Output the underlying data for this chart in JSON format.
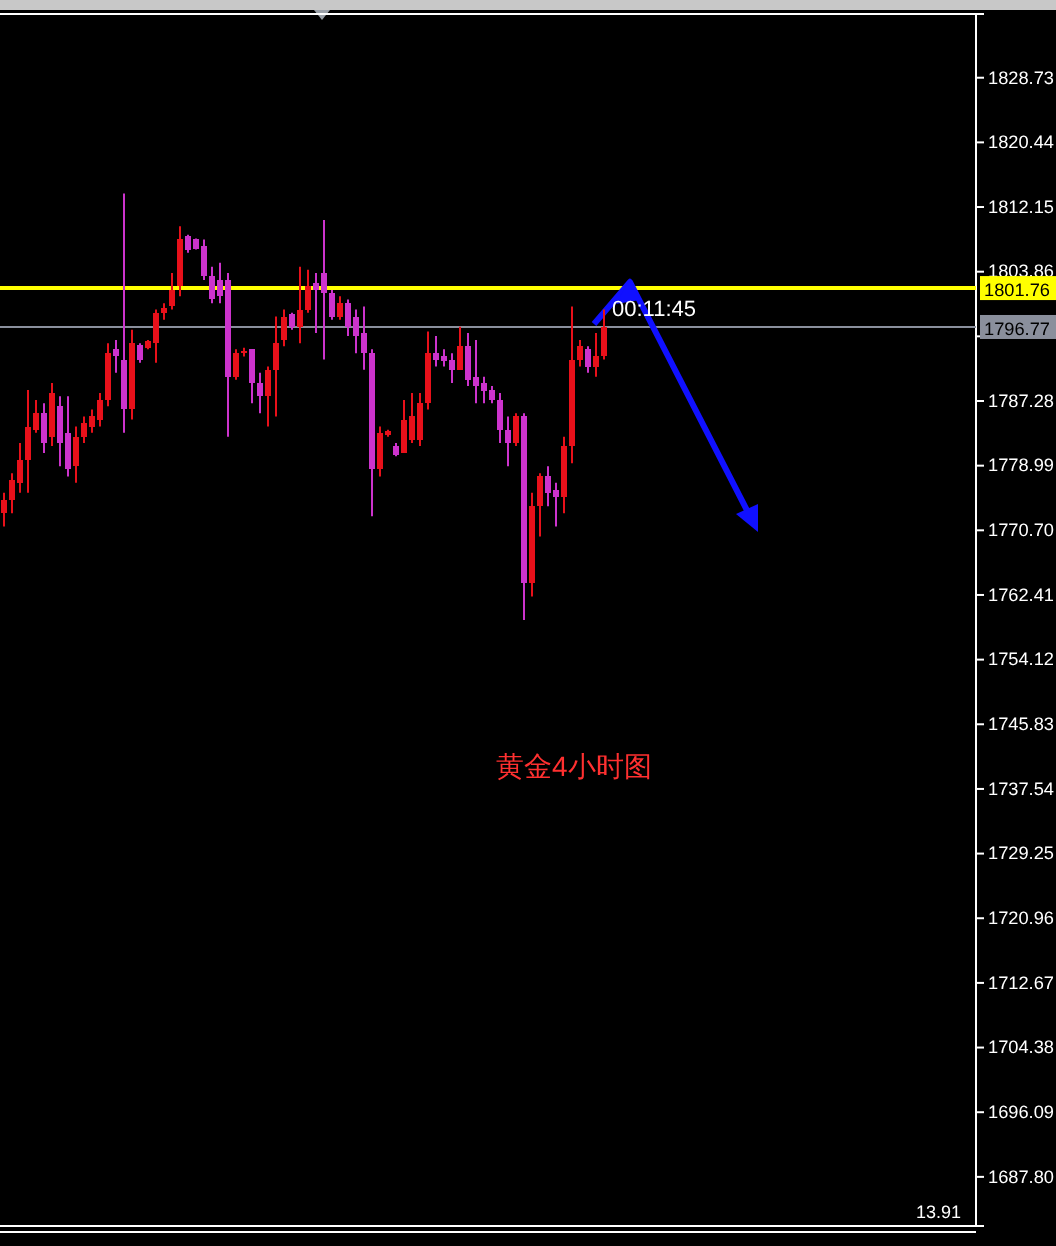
{
  "chart_data": {
    "type": "candlestick",
    "categories": [
      null,
      null,
      null,
      null,
      null,
      null,
      null,
      null,
      null,
      null,
      null,
      null,
      null,
      null,
      null,
      null,
      null,
      null,
      null,
      null,
      null,
      null,
      null,
      null,
      null,
      null,
      null,
      null,
      null,
      null,
      null,
      null,
      null,
      null,
      null,
      null,
      null,
      null,
      null,
      null,
      null,
      null,
      null,
      null,
      null,
      null,
      null,
      null,
      null,
      null,
      null,
      null,
      null,
      null,
      null,
      null,
      null,
      null,
      null,
      null,
      null,
      null,
      null,
      null,
      null,
      null,
      null,
      null,
      null,
      null,
      null,
      null,
      null,
      null,
      null,
      null,
      null,
      null,
      null,
      null,
      null,
      null,
      null,
      null,
      null,
      null,
      null,
      null,
      null,
      null,
      null,
      null,
      null,
      null,
      null,
      null,
      null,
      null,
      null,
      null,
      null,
      null,
      null,
      null,
      null,
      null,
      null,
      null,
      null,
      null,
      null,
      null,
      null,
      null,
      null,
      null,
      null,
      null,
      null,
      null,
      null,
      null
    ],
    "ohlc": [
      [
        1772.9,
        1775.5,
        1771.2,
        1774.6
      ],
      [
        1774.6,
        1778.0,
        1772.9,
        1777.2
      ],
      [
        1776.8,
        1781.9,
        1775.5,
        1779.7
      ],
      [
        1779.7,
        1788.7,
        1775.5,
        1784.0
      ],
      [
        1783.6,
        1787.4,
        1783.2,
        1785.7
      ],
      [
        1785.7,
        1787.0,
        1780.6,
        1781.9
      ],
      [
        1782.7,
        1789.6,
        1781.5,
        1788.3
      ],
      [
        1786.6,
        1787.9,
        1778.9,
        1781.9
      ],
      [
        1783.2,
        1787.9,
        1777.6,
        1778.5
      ],
      [
        1778.9,
        1784.0,
        1776.8,
        1782.7
      ],
      [
        1782.7,
        1785.3,
        1781.9,
        1784.5
      ],
      [
        1784.0,
        1786.2,
        1783.2,
        1785.3
      ],
      [
        1784.9,
        1788.3,
        1784.0,
        1787.4
      ],
      [
        1787.4,
        1794.7,
        1786.6,
        1793.4
      ],
      [
        1793.9,
        1795.1,
        1790.9,
        1793.0
      ],
      [
        1792.6,
        1813.9,
        1783.2,
        1786.2
      ],
      [
        1786.2,
        1796.4,
        1784.9,
        1794.7
      ],
      [
        1794.5,
        1794.7,
        1792.2,
        1792.6
      ],
      [
        1794.1,
        1795.1,
        1793.9,
        1795.0
      ],
      [
        1794.7,
        1799.0,
        1792.2,
        1798.6
      ],
      [
        1798.6,
        1799.8,
        1797.7,
        1799.2
      ],
      [
        1799.4,
        1803.7,
        1799.0,
        1801.5
      ],
      [
        1802.0,
        1809.7,
        1800.7,
        1808.1
      ],
      [
        1808.4,
        1808.6,
        1806.3,
        1806.7
      ],
      [
        1808.0,
        1808.1,
        1806.7,
        1806.8
      ],
      [
        1807.1,
        1808.0,
        1802.8,
        1803.3
      ],
      [
        1803.3,
        1804.5,
        1799.8,
        1800.4
      ],
      [
        1802.8,
        1805.0,
        1799.8,
        1800.7
      ],
      [
        1802.8,
        1803.7,
        1782.7,
        1790.4
      ],
      [
        1790.4,
        1793.9,
        1790.0,
        1793.4
      ],
      [
        1793.4,
        1794.1,
        1793.0,
        1793.7
      ],
      [
        1793.9,
        1793.9,
        1787.0,
        1789.6
      ],
      [
        1789.6,
        1790.9,
        1785.7,
        1787.9
      ],
      [
        1787.9,
        1791.7,
        1784.0,
        1791.3
      ],
      [
        1791.3,
        1798.1,
        1785.3,
        1794.7
      ],
      [
        1795.1,
        1799.0,
        1794.3,
        1798.1
      ],
      [
        1798.4,
        1798.6,
        1796.4,
        1796.8
      ],
      [
        1796.8,
        1804.5,
        1794.7,
        1799.0
      ],
      [
        1799.0,
        1804.1,
        1798.6,
        1802.0
      ],
      [
        1802.4,
        1803.7,
        1796.0,
        1801.5
      ],
      [
        1803.7,
        1810.5,
        1792.6,
        1801.1
      ],
      [
        1801.1,
        1801.5,
        1797.7,
        1798.1
      ],
      [
        1798.1,
        1800.7,
        1797.7,
        1799.8
      ],
      [
        1799.8,
        1800.3,
        1795.6,
        1796.8
      ],
      [
        1798.1,
        1799.0,
        1793.4,
        1795.6
      ],
      [
        1796.0,
        1799.4,
        1791.3,
        1793.4
      ],
      [
        1793.4,
        1793.9,
        1772.5,
        1778.5
      ],
      [
        1778.5,
        1784.0,
        1777.6,
        1783.2
      ],
      [
        1782.9,
        1783.6,
        1782.7,
        1783.4
      ],
      [
        1781.5,
        1781.9,
        1780.2,
        1780.4
      ],
      [
        1780.6,
        1787.4,
        1780.6,
        1784.9
      ],
      [
        1782.3,
        1788.3,
        1781.9,
        1785.3
      ],
      [
        1782.3,
        1788.3,
        1781.5,
        1787.0
      ],
      [
        1787.0,
        1796.2,
        1786.2,
        1793.4
      ],
      [
        1793.4,
        1795.6,
        1791.7,
        1792.6
      ],
      [
        1793.0,
        1793.9,
        1791.7,
        1792.4
      ],
      [
        1792.6,
        1793.4,
        1789.6,
        1791.3
      ],
      [
        1791.3,
        1796.8,
        1791.3,
        1794.3
      ],
      [
        1794.3,
        1796.0,
        1789.2,
        1790.0
      ],
      [
        1790.4,
        1795.1,
        1787.0,
        1789.2
      ],
      [
        1789.6,
        1790.4,
        1787.0,
        1788.5
      ],
      [
        1788.7,
        1789.2,
        1787.0,
        1787.4
      ],
      [
        1787.4,
        1788.3,
        1781.9,
        1783.6
      ],
      [
        1783.6,
        1785.3,
        1778.9,
        1781.9
      ],
      [
        1781.9,
        1785.7,
        1781.5,
        1785.3
      ],
      [
        1785.3,
        1785.7,
        1759.2,
        1763.9
      ],
      [
        1763.9,
        1775.5,
        1762.2,
        1773.8
      ],
      [
        1773.8,
        1778.0,
        1769.9,
        1777.6
      ],
      [
        1777.6,
        1778.9,
        1773.8,
        1775.5
      ],
      [
        1775.9,
        1776.8,
        1771.2,
        1775.0
      ],
      [
        1775.0,
        1782.7,
        1772.9,
        1781.5
      ],
      [
        1781.5,
        1799.4,
        1779.3,
        1792.6
      ],
      [
        1792.6,
        1795.1,
        1791.7,
        1794.3
      ],
      [
        1793.9,
        1794.3,
        1790.9,
        1791.7
      ],
      [
        1791.7,
        1796.0,
        1790.4,
        1793.0
      ],
      [
        1793.0,
        1799.0,
        1792.6,
        1796.8
      ],
      null,
      null,
      null,
      null,
      null,
      null,
      null,
      null,
      null,
      null,
      null,
      null,
      null,
      null,
      null,
      null,
      null,
      null,
      null,
      null,
      null,
      null,
      null,
      null,
      null,
      null,
      null,
      null,
      null,
      null,
      null,
      null,
      null,
      null,
      null,
      null,
      null,
      null,
      null,
      null,
      null,
      null,
      null,
      null,
      null,
      null
    ],
    "colors": [
      "#e8101a",
      "#e8101a",
      "#e8101a",
      "#e8101a",
      "#e8101a",
      "#cc33cc",
      "#e8101a",
      "#cc33cc",
      "#cc33cc",
      "#e8101a",
      "#e8101a",
      "#e8101a",
      "#e8101a",
      "#e8101a",
      "#cc33cc",
      "#cc33cc",
      "#e8101a",
      "#cc33cc",
      "#e8101a",
      "#e8101a",
      "#e8101a",
      "#e8101a",
      "#e8101a",
      "#cc33cc",
      "#cc33cc",
      "#cc33cc",
      "#cc33cc",
      "#cc33cc",
      "#cc33cc",
      "#e8101a",
      "#e8101a",
      "#cc33cc",
      "#cc33cc",
      "#e8101a",
      "#e8101a",
      "#e8101a",
      "#cc33cc",
      "#e8101a",
      "#e8101a",
      "#cc33cc",
      "#cc33cc",
      "#cc33cc",
      "#e8101a",
      "#cc33cc",
      "#cc33cc",
      "#cc33cc",
      "#cc33cc",
      "#e8101a",
      "#e8101a",
      "#cc33cc",
      "#e8101a",
      "#e8101a",
      "#e8101a",
      "#e8101a",
      "#cc33cc",
      "#cc33cc",
      "#cc33cc",
      "#e8101a",
      "#cc33cc",
      "#cc33cc",
      "#cc33cc",
      "#cc33cc",
      "#cc33cc",
      "#cc33cc",
      "#e8101a",
      "#cc33cc",
      "#e8101a",
      "#e8101a",
      "#cc33cc",
      "#cc33cc",
      "#e8101a",
      "#e8101a",
      "#e8101a",
      "#cc33cc",
      "#e8101a",
      "#e8101a",
      null,
      null,
      null,
      null,
      null,
      null,
      null,
      null,
      null,
      null,
      null,
      null,
      null,
      null,
      null,
      null,
      null,
      null,
      null,
      null,
      null,
      null,
      null,
      null,
      null,
      null,
      null,
      null,
      null,
      null,
      null,
      null,
      null,
      null,
      null,
      null,
      null,
      null,
      null,
      null,
      null,
      null,
      null,
      null,
      null,
      null
    ],
    "ylim": [
      1681.5,
      1836.9
    ],
    "yticks": [
      {
        "value": 1687.8,
        "label": "1687.80"
      },
      {
        "value": 1696.09,
        "label": "1696.09"
      },
      {
        "value": 1704.38,
        "label": "1704.38"
      },
      {
        "value": 1712.67,
        "label": "1712.67"
      },
      {
        "value": 1720.96,
        "label": "1720.96"
      },
      {
        "value": 1729.25,
        "label": "1729.25"
      },
      {
        "value": 1737.54,
        "label": "1737.54"
      },
      {
        "value": 1745.83,
        "label": "1745.83"
      },
      {
        "value": 1754.12,
        "label": "1754.12"
      },
      {
        "value": 1762.41,
        "label": "1762.41"
      },
      {
        "value": 1770.7,
        "label": "1770.70"
      },
      {
        "value": 1778.99,
        "label": "1778.99"
      },
      {
        "value": 1787.28,
        "label": "1787.28"
      },
      {
        "value": 1795.57,
        "label": null
      },
      {
        "value": 1803.86,
        "label": "1803.86"
      },
      {
        "value": 1812.15,
        "label": "1812.15"
      },
      {
        "value": 1820.44,
        "label": "1820.44"
      },
      {
        "value": 1828.73,
        "label": "1828.73"
      }
    ],
    "ref_lines": [
      {
        "axis": "y",
        "value": 1801.76,
        "label": "1801.76",
        "color": "#ffff00"
      },
      {
        "axis": "y",
        "value": 1796.77,
        "label": "1796.77",
        "color": "#8a8f9c"
      }
    ],
    "annotations": [
      "黄金4小时图",
      "00:11:45",
      "13.91"
    ],
    "grid": false
  }
}
